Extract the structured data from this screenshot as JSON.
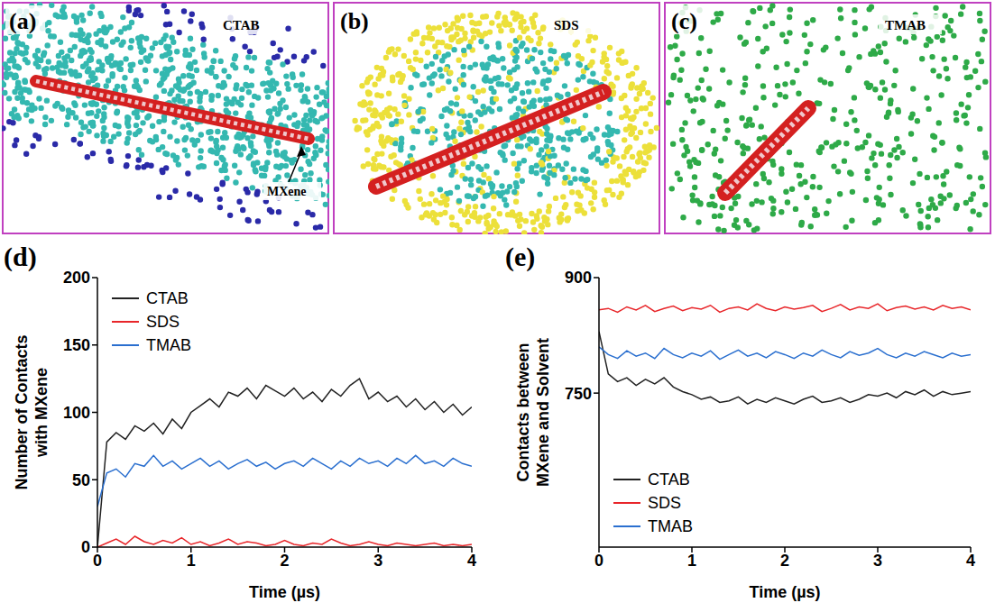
{
  "image_panels": [
    {
      "letter": "(a)",
      "label": "CTAB",
      "annotation": "MXene"
    },
    {
      "letter": "(b)",
      "label": "SDS"
    },
    {
      "letter": "(c)",
      "label": "TMAB"
    }
  ],
  "chart_data": [
    {
      "panel": "(d)",
      "type": "line",
      "x_label": "Time (µs)",
      "y_label": "Number of Contacts with MXene",
      "x": [
        0,
        0.1,
        0.2,
        0.3,
        0.4,
        0.5,
        0.6,
        0.7,
        0.8,
        0.9,
        1,
        1.1,
        1.2,
        1.3,
        1.4,
        1.5,
        1.6,
        1.7,
        1.8,
        1.9,
        2,
        2.1,
        2.2,
        2.3,
        2.4,
        2.5,
        2.6,
        2.7,
        2.8,
        2.9,
        3,
        3.1,
        3.2,
        3.3,
        3.4,
        3.5,
        3.6,
        3.7,
        3.8,
        3.9,
        4
      ],
      "xlim": [
        0,
        4
      ],
      "xticks": [
        0,
        1,
        2,
        3,
        4
      ],
      "ylim": [
        0,
        200
      ],
      "yticks": [
        0,
        50,
        100,
        150,
        200
      ],
      "grid": false,
      "legend": "upper left",
      "series": [
        {
          "name": "CTAB",
          "color": "#222222",
          "values": [
            0,
            78,
            85,
            80,
            90,
            86,
            92,
            84,
            95,
            88,
            100,
            105,
            110,
            104,
            115,
            112,
            118,
            110,
            120,
            116,
            112,
            118,
            110,
            115,
            108,
            117,
            112,
            120,
            125,
            110,
            115,
            108,
            112,
            104,
            110,
            102,
            108,
            100,
            106,
            98,
            104
          ]
        },
        {
          "name": "SDS",
          "color": "#e8262a",
          "values": [
            0,
            3,
            6,
            2,
            8,
            4,
            2,
            5,
            3,
            7,
            2,
            4,
            1,
            3,
            6,
            2,
            4,
            3,
            1,
            2,
            5,
            2,
            1,
            3,
            2,
            6,
            3,
            1,
            2,
            4,
            2,
            1,
            3,
            2,
            1,
            2,
            3,
            1,
            2,
            1,
            2
          ]
        },
        {
          "name": "TMAB",
          "color": "#2a6fcf",
          "values": [
            30,
            55,
            58,
            52,
            62,
            60,
            68,
            60,
            64,
            58,
            62,
            66,
            60,
            64,
            58,
            62,
            65,
            60,
            63,
            58,
            62,
            64,
            60,
            66,
            62,
            58,
            64,
            60,
            66,
            62,
            64,
            60,
            66,
            62,
            68,
            62,
            64,
            60,
            66,
            62,
            60
          ]
        }
      ]
    },
    {
      "panel": "(e)",
      "type": "line",
      "x_label": "Time (µs)",
      "y_label": "Contacts between MXene and Solvent",
      "x": [
        0,
        0.1,
        0.2,
        0.3,
        0.4,
        0.5,
        0.6,
        0.7,
        0.8,
        0.9,
        1,
        1.1,
        1.2,
        1.3,
        1.4,
        1.5,
        1.6,
        1.7,
        1.8,
        1.9,
        2,
        2.1,
        2.2,
        2.3,
        2.4,
        2.5,
        2.6,
        2.7,
        2.8,
        2.9,
        3,
        3.1,
        3.2,
        3.3,
        3.4,
        3.5,
        3.6,
        3.7,
        3.8,
        3.9,
        4
      ],
      "xlim": [
        0,
        4
      ],
      "xticks": [
        0,
        1,
        2,
        3,
        4
      ],
      "ylim": [
        550,
        900
      ],
      "yticks": [
        750,
        900
      ],
      "grid": false,
      "legend": "lower left",
      "series": [
        {
          "name": "CTAB",
          "color": "#222222",
          "values": [
            830,
            775,
            765,
            770,
            760,
            768,
            762,
            770,
            758,
            752,
            748,
            742,
            745,
            738,
            740,
            745,
            736,
            742,
            738,
            744,
            740,
            736,
            742,
            746,
            738,
            740,
            744,
            738,
            742,
            748,
            746,
            750,
            744,
            752,
            748,
            754,
            746,
            752,
            748,
            750,
            752
          ]
        },
        {
          "name": "SDS",
          "color": "#e8262a",
          "values": [
            858,
            860,
            855,
            862,
            858,
            864,
            856,
            860,
            863,
            857,
            861,
            859,
            864,
            855,
            860,
            862,
            858,
            866,
            860,
            857,
            862,
            859,
            861,
            864,
            856,
            860,
            865,
            858,
            862,
            860,
            866,
            857,
            861,
            863,
            859,
            862,
            858,
            864,
            860,
            862,
            858
          ]
        },
        {
          "name": "TMAB",
          "color": "#2a6fcf",
          "values": [
            810,
            800,
            795,
            805,
            798,
            802,
            795,
            808,
            800,
            796,
            802,
            798,
            805,
            794,
            800,
            806,
            798,
            802,
            796,
            804,
            800,
            795,
            802,
            798,
            806,
            800,
            796,
            804,
            799,
            802,
            808,
            800,
            796,
            802,
            798,
            804,
            800,
            796,
            802,
            798,
            800
          ]
        }
      ]
    }
  ]
}
